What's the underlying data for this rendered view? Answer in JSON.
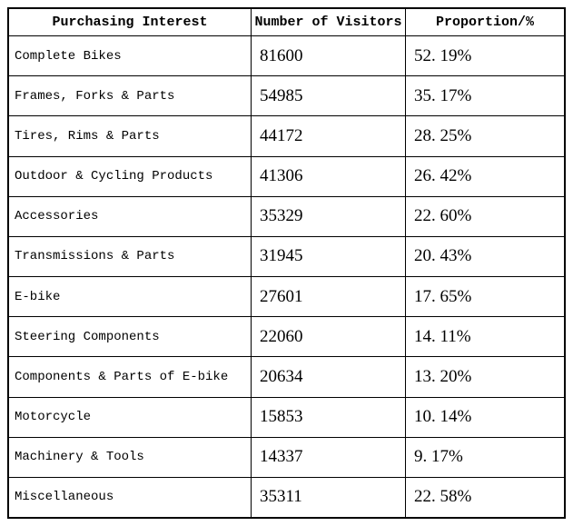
{
  "table": {
    "headers": {
      "interest": "Purchasing Interest",
      "visitors": "Number of Visitors",
      "proportion": "Proportion/%"
    },
    "rows": [
      {
        "interest": "Complete Bikes",
        "visitors": "81600",
        "proportion": "52. 19%"
      },
      {
        "interest": "Frames, Forks & Parts",
        "visitors": "54985",
        "proportion": "35. 17%"
      },
      {
        "interest": "Tires, Rims & Parts",
        "visitors": "44172",
        "proportion": "28. 25%"
      },
      {
        "interest": "Outdoor & Cycling Products",
        "visitors": "41306",
        "proportion": "26. 42%"
      },
      {
        "interest": "Accessories",
        "visitors": "35329",
        "proportion": "22. 60%"
      },
      {
        "interest": "Transmissions & Parts",
        "visitors": "31945",
        "proportion": "20. 43%"
      },
      {
        "interest": "E-bike",
        "visitors": "27601",
        "proportion": "17. 65%"
      },
      {
        "interest": "Steering Components",
        "visitors": "22060",
        "proportion": "14. 11%"
      },
      {
        "interest": "Components & Parts of E-bike",
        "visitors": "20634",
        "proportion": "13. 20%"
      },
      {
        "interest": "Motorcycle",
        "visitors": "15853",
        "proportion": "10. 14%"
      },
      {
        "interest": "Machinery & Tools",
        "visitors": "14337",
        "proportion": "9. 17%"
      },
      {
        "interest": "Miscellaneous",
        "visitors": "35311",
        "proportion": "22. 58%"
      }
    ]
  },
  "chart_data": {
    "type": "table",
    "title": "",
    "columns": [
      "Purchasing Interest",
      "Number of Visitors",
      "Proportion/%"
    ],
    "categories": [
      "Complete Bikes",
      "Frames, Forks & Parts",
      "Tires, Rims & Parts",
      "Outdoor & Cycling Products",
      "Accessories",
      "Transmissions & Parts",
      "E-bike",
      "Steering Components",
      "Components & Parts of E-bike",
      "Motorcycle",
      "Machinery & Tools",
      "Miscellaneous"
    ],
    "series": [
      {
        "name": "Number of Visitors",
        "values": [
          81600,
          54985,
          44172,
          41306,
          35329,
          31945,
          27601,
          22060,
          20634,
          15853,
          14337,
          35311
        ]
      },
      {
        "name": "Proportion/%",
        "values": [
          52.19,
          35.17,
          28.25,
          26.42,
          22.6,
          20.43,
          17.65,
          14.11,
          13.2,
          10.14,
          9.17,
          22.58
        ]
      }
    ],
    "layout_hints": {
      "grid": "full-borders",
      "header_bold": true,
      "text_color": "#000000",
      "border_color": "#000000",
      "background": "#ffffff"
    }
  }
}
